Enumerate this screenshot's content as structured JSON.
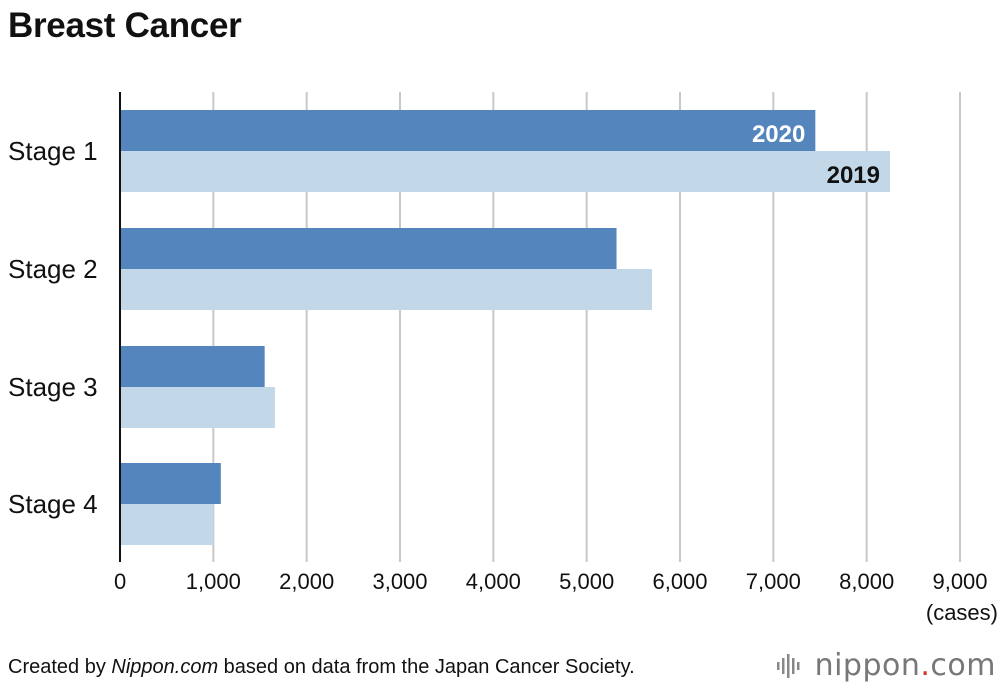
{
  "title": "Breast Cancer",
  "chart_data": {
    "type": "bar",
    "orientation": "horizontal",
    "categories": [
      "Stage 1",
      "Stage 2",
      "Stage 3",
      "Stage 4"
    ],
    "series": [
      {
        "name": "2020",
        "values": [
          7450,
          5320,
          1550,
          1080
        ],
        "color": "#5585bd"
      },
      {
        "name": "2019",
        "values": [
          8250,
          5700,
          1660,
          1000
        ],
        "color": "#c2d8e8"
      }
    ],
    "xlim": [
      0,
      9000
    ],
    "xticks": [
      0,
      1000,
      2000,
      3000,
      4000,
      5000,
      6000,
      7000,
      8000,
      9000
    ],
    "xtick_labels": [
      "0",
      "1,000",
      "2,000",
      "3,000",
      "4,000",
      "5,000",
      "6,000",
      "7,000",
      "8,000",
      "9,000"
    ],
    "xlabel": "(cases)",
    "grid": "vertical"
  },
  "footer": {
    "prefix": "Created by ",
    "source": "Nippon.com",
    "suffix": " based on data from the Japan Cancer Society."
  },
  "logo": {
    "name": "nippon",
    "dot": ".",
    "tld": "com"
  }
}
